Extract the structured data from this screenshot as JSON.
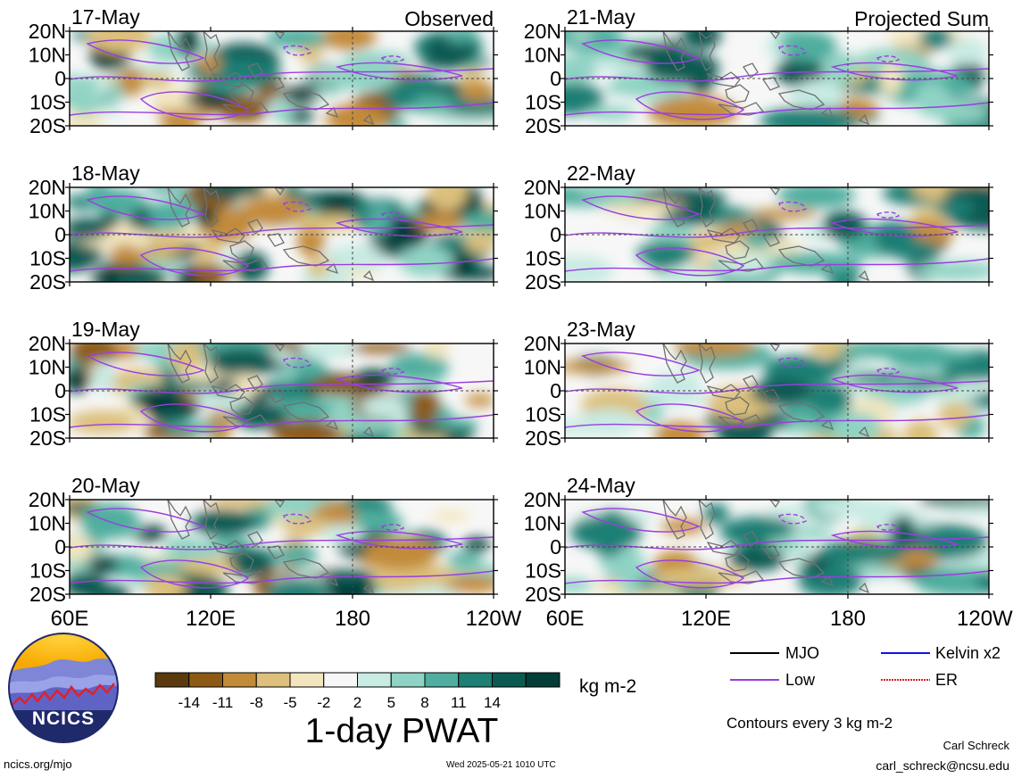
{
  "observed_label": "Observed",
  "projected_label": "Projected Sum",
  "observed_dates": [
    "17-May",
    "18-May",
    "19-May",
    "20-May"
  ],
  "projected_dates": [
    "21-May",
    "22-May",
    "23-May",
    "24-May"
  ],
  "lat_labels": [
    "20N",
    "10N",
    "0",
    "10S",
    "20S"
  ],
  "lon_labels": [
    "60E",
    "120E",
    "180",
    "120W"
  ],
  "colorbar": {
    "ticks": [
      "-14",
      "-11",
      "-8",
      "-5",
      "-2",
      "2",
      "5",
      "8",
      "11",
      "14"
    ],
    "colors": [
      "#5a3a0e",
      "#8c5a14",
      "#c28b3a",
      "#dcc07c",
      "#f3e6be",
      "#f7f7f7",
      "#c8ebe3",
      "#8fd3c4",
      "#4fae9f",
      "#1e7f74",
      "#0a5a52",
      "#033d37"
    ],
    "units": "kg m-2",
    "title": "1-day PWAT"
  },
  "legend": {
    "items": [
      {
        "label": "MJO",
        "color": "#000000"
      },
      {
        "label": "Kelvin x2",
        "color": "#1010ee"
      },
      {
        "label": "Low",
        "color": "#9a3ee0"
      },
      {
        "label": "ER",
        "color": "#e02020"
      }
    ],
    "note": "Contours every 3 kg m-2"
  },
  "logo_text": "NCICS",
  "footer": {
    "left": "ncics.org/mjo",
    "center": "Wed 2025-05-21 1010 UTC",
    "author": "Carl Schreck",
    "email": "carl_schreck@ncsu.edu"
  }
}
